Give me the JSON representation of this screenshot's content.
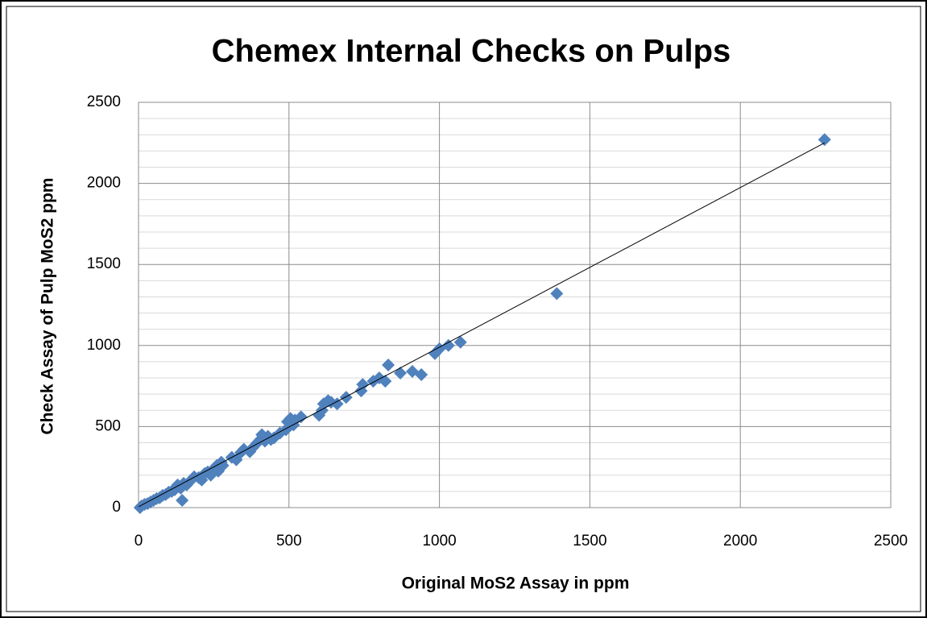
{
  "chart_data": {
    "type": "scatter",
    "title": "Chemex Internal Checks on Pulps",
    "x_label": "Original MoS2 Assay in ppm",
    "y_label": "Check Assay of Pulp MoS2 ppm",
    "xlim": [
      0,
      2500
    ],
    "ylim": [
      0,
      2500
    ],
    "xticks": [
      0,
      500,
      1000,
      1500,
      2000,
      2500
    ],
    "yticks": [
      0,
      500,
      1000,
      1500,
      2000,
      2500
    ],
    "yminorticks": [
      100,
      200,
      300,
      400,
      600,
      700,
      800,
      900,
      1100,
      1200,
      1300,
      1400,
      1600,
      1700,
      1800,
      1900,
      2100,
      2200,
      2300,
      2400
    ],
    "grid": true,
    "color": "#4f81bd",
    "trendline": {
      "x": [
        0,
        2280
      ],
      "values": [
        5,
        2250
      ],
      "color": "#000000"
    },
    "x": [
      5,
      10,
      20,
      30,
      40,
      50,
      60,
      70,
      80,
      90,
      100,
      110,
      120,
      130,
      140,
      145,
      150,
      160,
      175,
      185,
      200,
      210,
      220,
      230,
      240,
      250,
      260,
      265,
      275,
      280,
      310,
      325,
      340,
      350,
      370,
      380,
      395,
      405,
      410,
      420,
      430,
      440,
      450,
      470,
      490,
      495,
      505,
      515,
      520,
      540,
      600,
      610,
      615,
      630,
      640,
      660,
      690,
      740,
      745,
      780,
      800,
      820,
      830,
      870,
      910,
      940,
      985,
      1000,
      1030,
      1070,
      1390,
      2280
    ],
    "values": [
      0,
      10,
      20,
      25,
      35,
      45,
      55,
      60,
      75,
      80,
      95,
      100,
      110,
      140,
      120,
      45,
      150,
      140,
      170,
      190,
      185,
      170,
      210,
      220,
      200,
      240,
      260,
      225,
      280,
      260,
      310,
      295,
      340,
      360,
      345,
      370,
      400,
      420,
      450,
      410,
      440,
      420,
      430,
      460,
      480,
      530,
      550,
      510,
      540,
      560,
      570,
      600,
      640,
      660,
      650,
      640,
      680,
      720,
      760,
      780,
      800,
      780,
      880,
      830,
      840,
      820,
      950,
      980,
      1000,
      1020,
      1320,
      2270
    ]
  }
}
